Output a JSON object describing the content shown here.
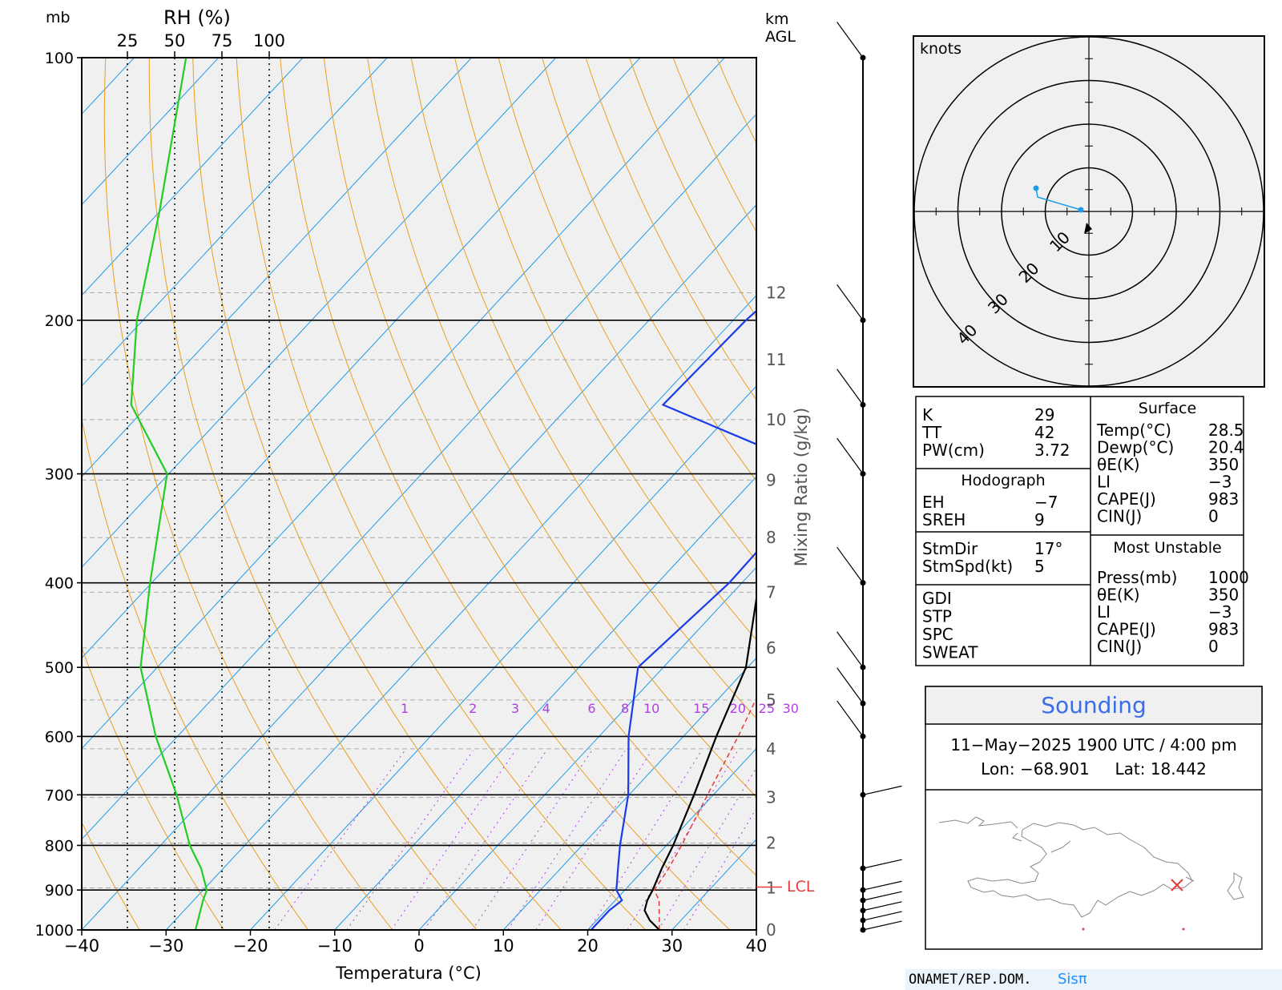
{
  "chart_data": {
    "type": "line",
    "title": "",
    "xlabel": "Temperatura (°C)",
    "ylabel": "mb",
    "xlim": [
      -40,
      40
    ],
    "ylim": [
      1000,
      100
    ],
    "y_scale": "log",
    "x_ticks": [
      "−40",
      "−30",
      "−20",
      "−10",
      "0",
      "10",
      "20",
      "30",
      "40"
    ],
    "pressure_ticks": [
      "100",
      "200",
      "300",
      "400",
      "500",
      "600",
      "700",
      "800",
      "900",
      "1000"
    ],
    "pressure_values": [
      100,
      200,
      300,
      400,
      500,
      600,
      700,
      800,
      900,
      1000
    ],
    "rh_axis": {
      "label": "RH (%)",
      "ticks": [
        "25",
        "50",
        "75",
        "100"
      ],
      "values": [
        25,
        50,
        75,
        100
      ]
    },
    "height_axis": {
      "label": "km\nAGL",
      "ticks": [
        "0",
        "1",
        "2",
        "3",
        "4",
        "5",
        "6",
        "7",
        "8",
        "9",
        "10",
        "11",
        "12"
      ]
    },
    "mixing_ratio_label": "Mixing Ratio (g/kg)",
    "mixing_ratio_ticks": [
      "1",
      "2",
      "3",
      "4",
      "6",
      "8",
      "10",
      "15",
      "20",
      "25",
      "30"
    ],
    "lcl_label": "LCL",
    "series": [
      {
        "name": "",
        "key": "temperature",
        "color": "#000000",
        "points": [
          [
            1000,
            28.5
          ],
          [
            975,
            26.3
          ],
          [
            950,
            24.6
          ],
          [
            925,
            23.8
          ],
          [
            900,
            23.3
          ],
          [
            850,
            22.0
          ],
          [
            800,
            20.8
          ],
          [
            700,
            17.7
          ],
          [
            600,
            13.9
          ],
          [
            500,
            9.8
          ],
          [
            400,
            2.0
          ],
          [
            300,
            -8.3
          ],
          [
            250,
            -15.3
          ],
          [
            200,
            -22.9
          ],
          [
            150,
            -26.0
          ],
          [
            100,
            -30.4
          ]
        ]
      },
      {
        "name": "",
        "key": "dewpoint",
        "color": "#1a3be8",
        "points": [
          [
            1000,
            20.4
          ],
          [
            950,
            20.4
          ],
          [
            925,
            20.8
          ],
          [
            900,
            19.0
          ],
          [
            850,
            16.8
          ],
          [
            800,
            14.5
          ],
          [
            700,
            9.9
          ],
          [
            600,
            3.5
          ],
          [
            500,
            -3.0
          ],
          [
            400,
            -1.5
          ],
          [
            300,
            -2.0
          ],
          [
            250,
            -29.0
          ],
          [
            200,
            -28.5
          ],
          [
            150,
            -26.0
          ],
          [
            100,
            -23.0
          ]
        ]
      },
      {
        "name": "",
        "key": "parcel",
        "color": "#e53b3b",
        "points": [
          [
            1000,
            28.5
          ],
          [
            925,
            25.2
          ],
          [
            900,
            23.5
          ],
          [
            850,
            22.8
          ],
          [
            800,
            21.8
          ],
          [
            700,
            19.3
          ],
          [
            600,
            16.5
          ],
          [
            500,
            12.8
          ],
          [
            400,
            6.4
          ],
          [
            300,
            -2.5
          ],
          [
            250,
            -11.0
          ],
          [
            200,
            -21.5
          ],
          [
            150,
            -33.0
          ],
          [
            110,
            -46.0
          ]
        ]
      },
      {
        "name": "",
        "key": "relative_humidity",
        "color": "#22cc22",
        "points": [
          [
            1000,
            61
          ],
          [
            925,
            65
          ],
          [
            900,
            67
          ],
          [
            850,
            64
          ],
          [
            800,
            58
          ],
          [
            700,
            51
          ],
          [
            600,
            40
          ],
          [
            500,
            32
          ],
          [
            400,
            37
          ],
          [
            300,
            46
          ],
          [
            250,
            27
          ],
          [
            200,
            30
          ],
          [
            150,
            42
          ],
          [
            100,
            56
          ]
        ]
      }
    ],
    "wind_barbs": [
      {
        "pressure": 100
      },
      {
        "pressure": 200
      },
      {
        "pressure": 250
      },
      {
        "pressure": 300
      },
      {
        "pressure": 400
      },
      {
        "pressure": 500
      },
      {
        "pressure": 550
      },
      {
        "pressure": 600
      },
      {
        "pressure": 700
      },
      {
        "pressure": 850
      },
      {
        "pressure": 900
      },
      {
        "pressure": 925
      },
      {
        "pressure": 950
      },
      {
        "pressure": 975
      },
      {
        "pressure": 1000
      }
    ]
  },
  "hodograph": {
    "units_label": "knots",
    "ring_labels": [
      "10",
      "20",
      "30",
      "40"
    ],
    "ring_values": [
      10,
      20,
      30,
      40
    ]
  },
  "indices": {
    "left": [
      {
        "label": "K",
        "value": "29"
      },
      {
        "label": "TT",
        "value": "42"
      },
      {
        "label": "PW(cm)",
        "value": "3.72"
      }
    ],
    "hodograph_title": "Hodograph",
    "hodograph_rows": [
      {
        "label": "EH",
        "value": "−7"
      },
      {
        "label": "SREH",
        "value": "9"
      }
    ],
    "storm_rows": [
      {
        "label": "StmDir",
        "value": "17°"
      },
      {
        "label": "StmSpd(kt)",
        "value": "5"
      }
    ],
    "other_rows": [
      {
        "label": "GDI",
        "value": ""
      },
      {
        "label": "STP",
        "value": ""
      },
      {
        "label": "SPC",
        "value": ""
      },
      {
        "label": "SWEAT",
        "value": ""
      }
    ],
    "surface_title": "Surface",
    "surface_rows": [
      {
        "label": "Temp(°C)",
        "value": "28.5"
      },
      {
        "label": "Dewp(°C)",
        "value": "20.4"
      },
      {
        "label": "θE(K)",
        "value": "350"
      },
      {
        "label": "LI",
        "value": "−3"
      },
      {
        "label": "CAPE(J)",
        "value": "983"
      },
      {
        "label": "CIN(J)",
        "value": "0"
      }
    ],
    "mu_title": "Most Unstable",
    "mu_rows": [
      {
        "label": "Press(mb)",
        "value": "1000"
      },
      {
        "label": "θE(K)",
        "value": "350"
      },
      {
        "label": "LI",
        "value": "−3"
      },
      {
        "label": "CAPE(J)",
        "value": "983"
      },
      {
        "label": "CIN(J)",
        "value": "0"
      }
    ]
  },
  "sounding": {
    "title": "Sounding",
    "datetime": "11−May−2025 1900 UTC / 4:00 pm",
    "location": "Lon: −68.901     Lat: 18.442"
  },
  "footer": {
    "source": "ONAMET/REP.DOM.",
    "logo_text": "Sisπ"
  },
  "colors": {
    "background_plot": "#f0f0f0",
    "isotherm": "#1e9be8",
    "dry_adiabat": "#e8a020",
    "mixing_ratio": "#b040e0",
    "lcl": "#e53b3b",
    "sounding_title": "#3a6ee8"
  }
}
